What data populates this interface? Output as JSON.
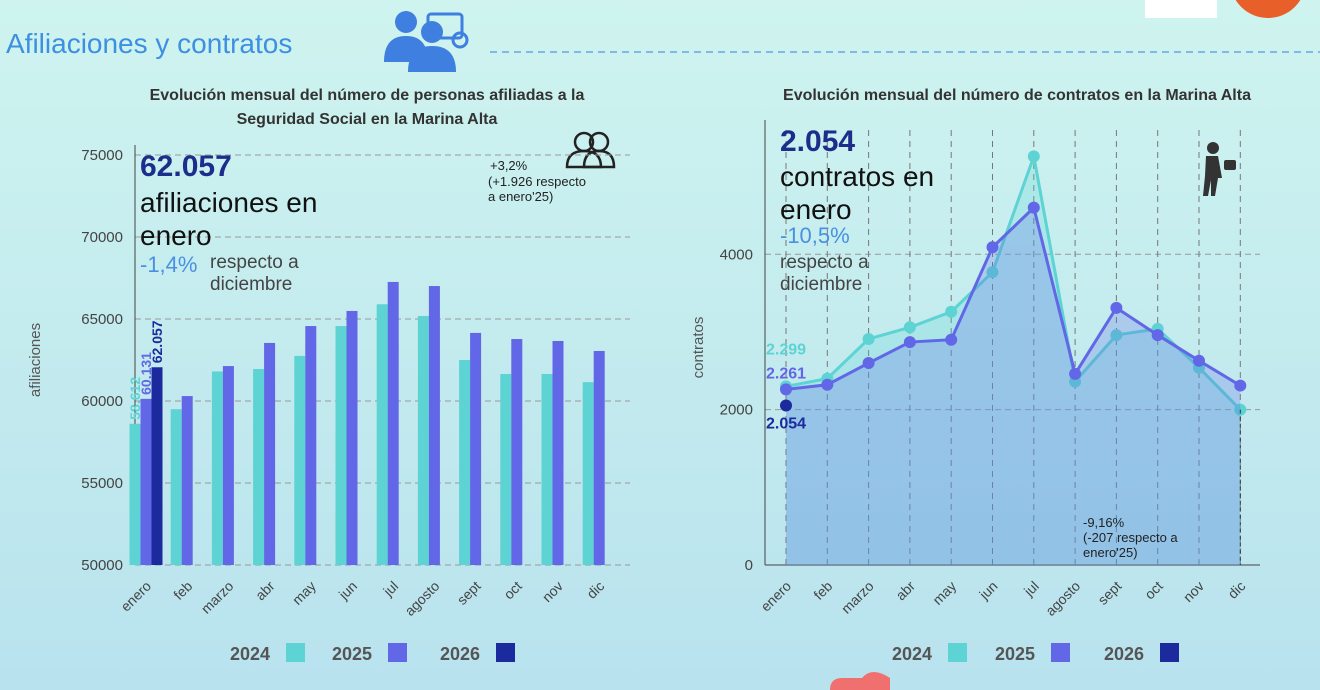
{
  "header": {
    "title": "Afiliaciones y contratos"
  },
  "chart_data": [
    {
      "type": "bar",
      "title": "Evolución mensual del número de personas afiliadas a la Seguridad Social en la Marina Alta",
      "y_label": "afiliaciones",
      "categories": [
        "enero",
        "feb",
        "marzo",
        "abr",
        "may",
        "jun",
        "jul",
        "agosto",
        "sept",
        "oct",
        "nov",
        "dic"
      ],
      "series": [
        {
          "name": "2024",
          "color": "#5dd3d3",
          "values": [
            58612,
            59500,
            61800,
            61950,
            62750,
            64570,
            65900,
            65180,
            62500,
            61650,
            61650,
            61150
          ],
          "value_labels": [
            "58.612",
            null,
            null,
            null,
            null,
            null,
            null,
            null,
            null,
            null,
            null,
            null
          ]
        },
        {
          "name": "2025",
          "color": "#6167e6",
          "values": [
            60131,
            60300,
            62130,
            63540,
            64570,
            65490,
            67260,
            67010,
            64150,
            63780,
            63660,
            63050
          ],
          "value_labels": [
            "60.131",
            null,
            null,
            null,
            null,
            null,
            null,
            null,
            null,
            null,
            null,
            null
          ]
        },
        {
          "name": "2026",
          "color": "#1b2a9c",
          "values": [
            62057,
            null,
            null,
            null,
            null,
            null,
            null,
            null,
            null,
            null,
            null,
            null
          ],
          "value_labels": [
            "62.057",
            null,
            null,
            null,
            null,
            null,
            null,
            null,
            null,
            null,
            null,
            null
          ]
        }
      ],
      "ylim": [
        50000,
        75000
      ],
      "yticks": [
        50000,
        55000,
        60000,
        65000,
        70000,
        75000
      ],
      "grid": true,
      "annotations": {
        "headline": "62.057",
        "headline_text": "afiliaciones en enero",
        "change": "-1,4%",
        "change_text": "respecto a diciembre",
        "yoy": "+3,2%",
        "yoy_text": "(+1.926 respecto a enero'25)"
      }
    },
    {
      "type": "line",
      "title": "Evolución mensual del número de contratos en la Marina Alta",
      "y_label": "contratos",
      "categories": [
        "enero",
        "feb",
        "marzo",
        "abr",
        "may",
        "jun",
        "jul",
        "agosto",
        "sept",
        "oct",
        "nov",
        "dic"
      ],
      "series": [
        {
          "name": "2024",
          "color": "#5dd3d3",
          "values": [
            2299,
            2400,
            2910,
            3060,
            3260,
            3770,
            5260,
            2360,
            2960,
            3040,
            2540,
            2000
          ],
          "value_labels": [
            "2.299",
            null,
            null,
            null,
            null,
            null,
            null,
            null,
            null,
            null,
            null,
            null
          ]
        },
        {
          "name": "2025",
          "color": "#6167e6",
          "values": [
            2261,
            2320,
            2600,
            2870,
            2900,
            4090,
            4600,
            2460,
            3310,
            2960,
            2630,
            2310
          ],
          "value_labels": [
            "2.261",
            null,
            null,
            null,
            null,
            null,
            null,
            null,
            null,
            null,
            null,
            null
          ]
        },
        {
          "name": "2026",
          "color": "#1b2a9c",
          "values": [
            2054,
            null,
            null,
            null,
            null,
            null,
            null,
            null,
            null,
            null,
            null,
            null
          ],
          "value_labels": [
            "2.054",
            null,
            null,
            null,
            null,
            null,
            null,
            null,
            null,
            null,
            null,
            null
          ]
        }
      ],
      "ylim": [
        0,
        5600
      ],
      "yticks": [
        0,
        2000,
        4000
      ],
      "grid": true,
      "annotations": {
        "headline": "2.054",
        "headline_text": "contratos en enero",
        "change": "-10,5%",
        "change_text": "respecto a diciembre",
        "yoy": "-9,16%",
        "yoy_text": "(-207 respecto a enero'25)"
      }
    }
  ]
}
